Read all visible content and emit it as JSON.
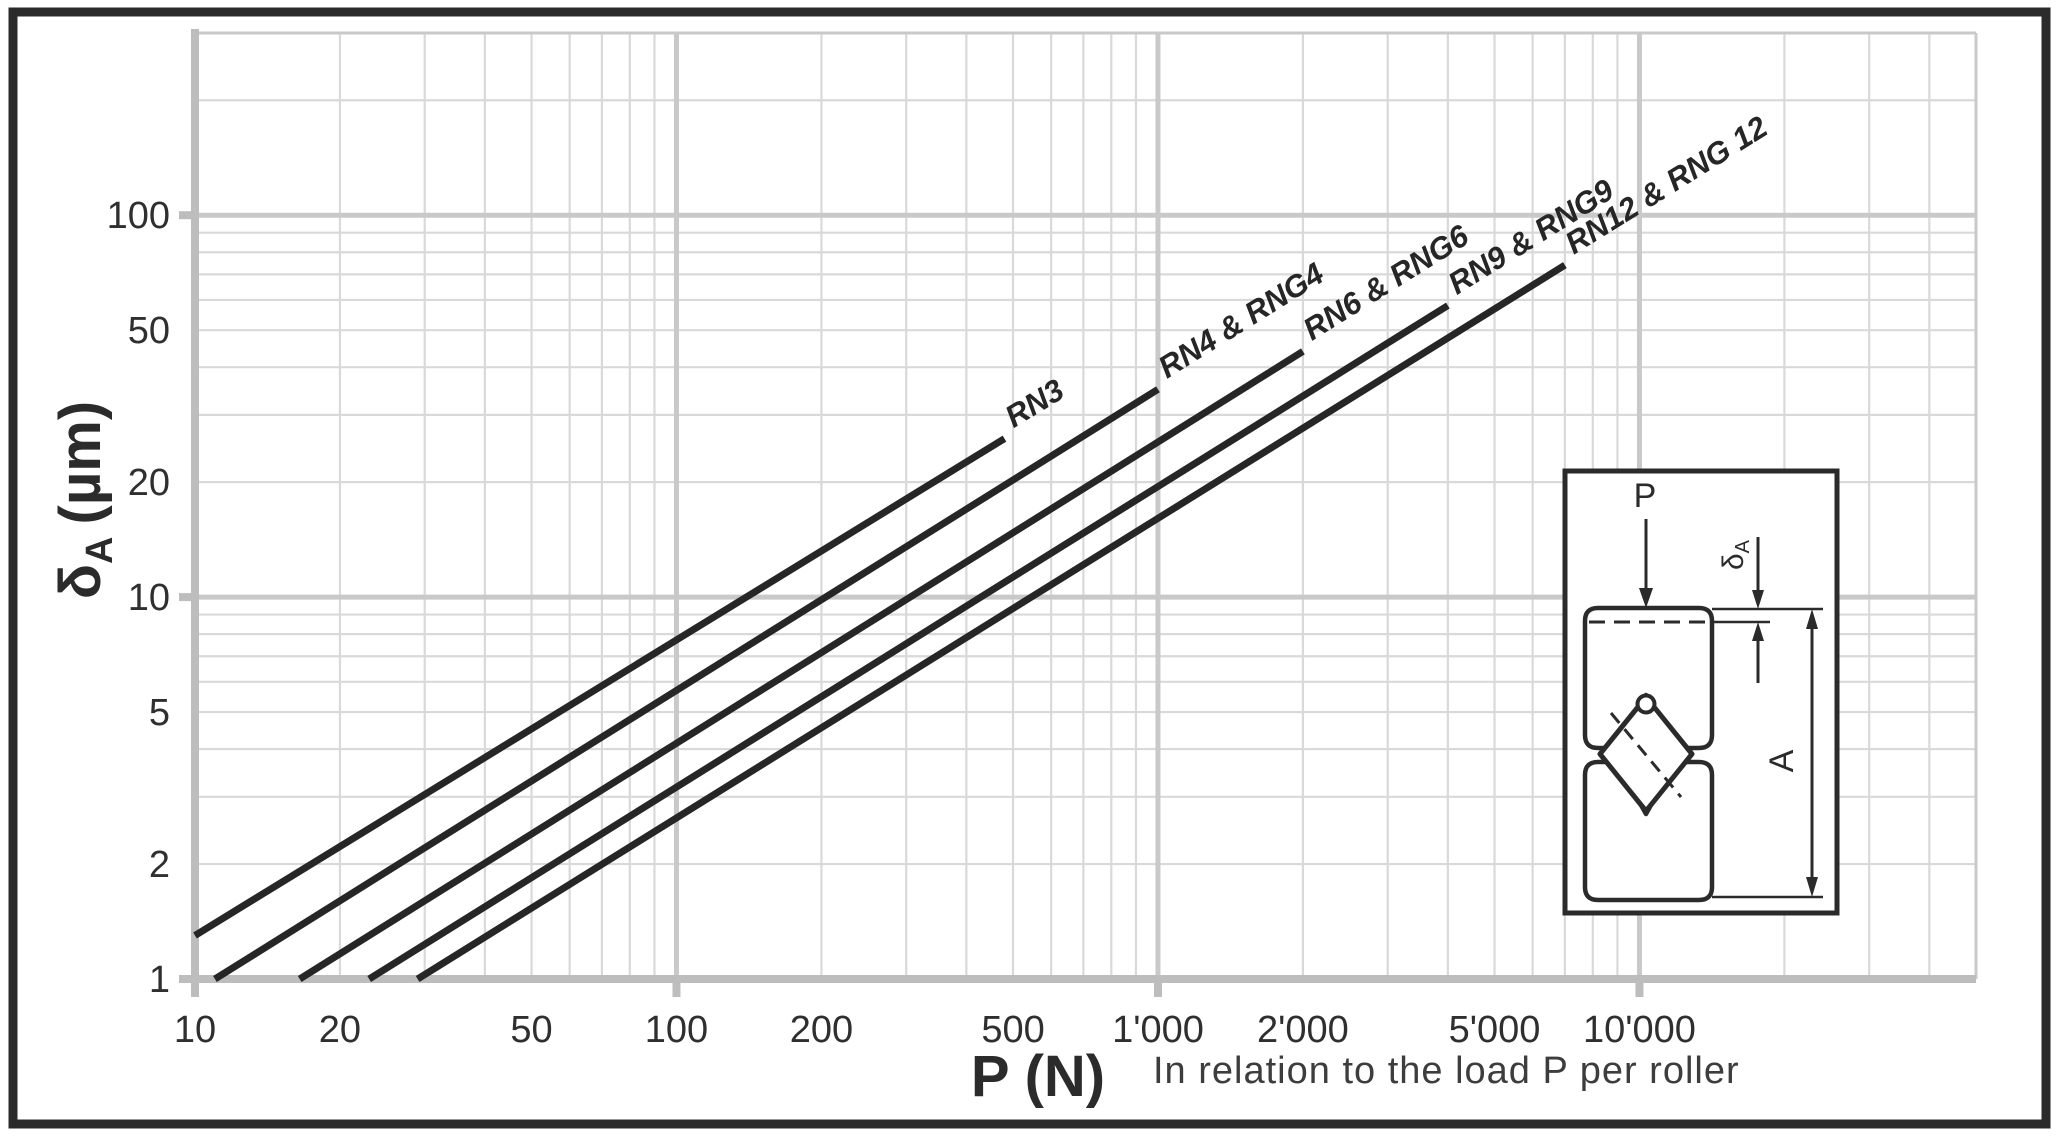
{
  "frame": {
    "color": "#2b2b2b"
  },
  "chart_data": {
    "type": "line",
    "title": "",
    "x_scale": "log",
    "y_scale": "log",
    "xlim": [
      10,
      50000
    ],
    "ylim": [
      1,
      300
    ],
    "xlabel": "P (N)",
    "xlabel_note": "In relation to the load P per roller",
    "ylabel_sym": "δ",
    "ylabel_sub": "A",
    "ylabel_unit": "(µm)",
    "x_ticks": [
      {
        "v": 10,
        "label": "10"
      },
      {
        "v": 20,
        "label": "20"
      },
      {
        "v": 50,
        "label": "50"
      },
      {
        "v": 100,
        "label": "100"
      },
      {
        "v": 200,
        "label": "200"
      },
      {
        "v": 500,
        "label": "500"
      },
      {
        "v": 1000,
        "label": "1'000"
      },
      {
        "v": 2000,
        "label": "2'000"
      },
      {
        "v": 5000,
        "label": "5'000"
      },
      {
        "v": 10000,
        "label": "10'000"
      }
    ],
    "y_ticks": [
      {
        "v": 1,
        "label": "1"
      },
      {
        "v": 2,
        "label": "2"
      },
      {
        "v": 5,
        "label": "5"
      },
      {
        "v": 10,
        "label": "10"
      },
      {
        "v": 20,
        "label": "20"
      },
      {
        "v": 50,
        "label": "50"
      },
      {
        "v": 100,
        "label": "100"
      }
    ],
    "series": [
      {
        "name": "RN3",
        "points": [
          [
            10,
            1.3
          ],
          [
            480,
            26
          ]
        ]
      },
      {
        "name": "RN4 & RNG4",
        "points": [
          [
            11,
            1
          ],
          [
            1000,
            35
          ]
        ]
      },
      {
        "name": "RN6 & RNG6",
        "points": [
          [
            16.5,
            1
          ],
          [
            2000,
            44
          ]
        ]
      },
      {
        "name": "RN9 & RNG9",
        "points": [
          [
            23,
            1
          ],
          [
            4000,
            58
          ]
        ]
      },
      {
        "name": "RN12 & RNG 12",
        "points": [
          [
            29,
            1
          ],
          [
            7000,
            74
          ]
        ]
      }
    ],
    "grid": {
      "minor": true,
      "major_decades": true,
      "legend": "labels at line ends"
    },
    "colors": {
      "line": "#262626",
      "grid_minor": "#d9d9d9",
      "grid_major": "#c9c9c9",
      "axis": "#bdbdbd",
      "text": "#2f2f2f"
    }
  },
  "inset": {
    "load_label": "P",
    "deflection_sym": "δ",
    "deflection_sub": "A",
    "height_label": "A"
  }
}
